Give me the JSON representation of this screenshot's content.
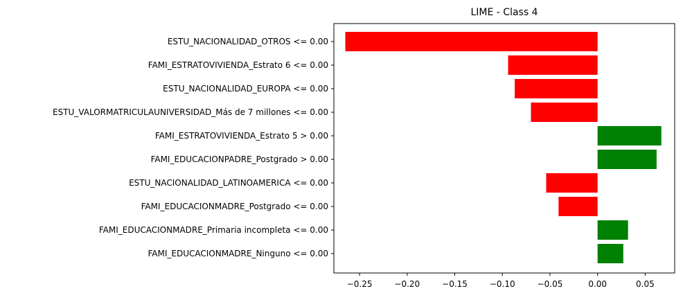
{
  "chart_data": {
    "type": "bar",
    "orientation": "horizontal",
    "title": "LIME - Class 4",
    "xlabel": "",
    "ylabel": "",
    "xlim": [
      -0.277,
      0.081
    ],
    "grid": false,
    "legend": "none",
    "xticks": [
      -0.25,
      -0.2,
      -0.15,
      -0.1,
      -0.05,
      0.0,
      0.05
    ],
    "xtick_labels": [
      "−0.25",
      "−0.20",
      "−0.15",
      "−0.10",
      "−0.05",
      "0.00",
      "0.05"
    ],
    "categories": [
      "ESTU_NACIONALIDAD_OTROS <= 0.00",
      "FAMI_ESTRATOVIVIENDA_Estrato 6 <= 0.00",
      "ESTU_NACIONALIDAD_EUROPA <= 0.00",
      "ESTU_VALORMATRICULAUNIVERSIDAD_Más de 7 millones <= 0.00",
      "FAMI_ESTRATOVIVIENDA_Estrato 5 > 0.00",
      "FAMI_EDUCACIONPADRE_Postgrado > 0.00",
      "ESTU_NACIONALIDAD_LATINOAMERICA <= 0.00",
      "FAMI_EDUCACIONMADRE_Postgrado <= 0.00",
      "FAMI_EDUCACIONMADRE_Primaria incompleta <= 0.00",
      "FAMI_EDUCACIONMADRE_Ninguno <= 0.00"
    ],
    "values": [
      -0.265,
      -0.094,
      -0.087,
      -0.07,
      0.067,
      0.062,
      -0.054,
      -0.041,
      0.032,
      0.027
    ],
    "colors": {
      "positive": "#008000",
      "negative": "#ff0000"
    }
  }
}
